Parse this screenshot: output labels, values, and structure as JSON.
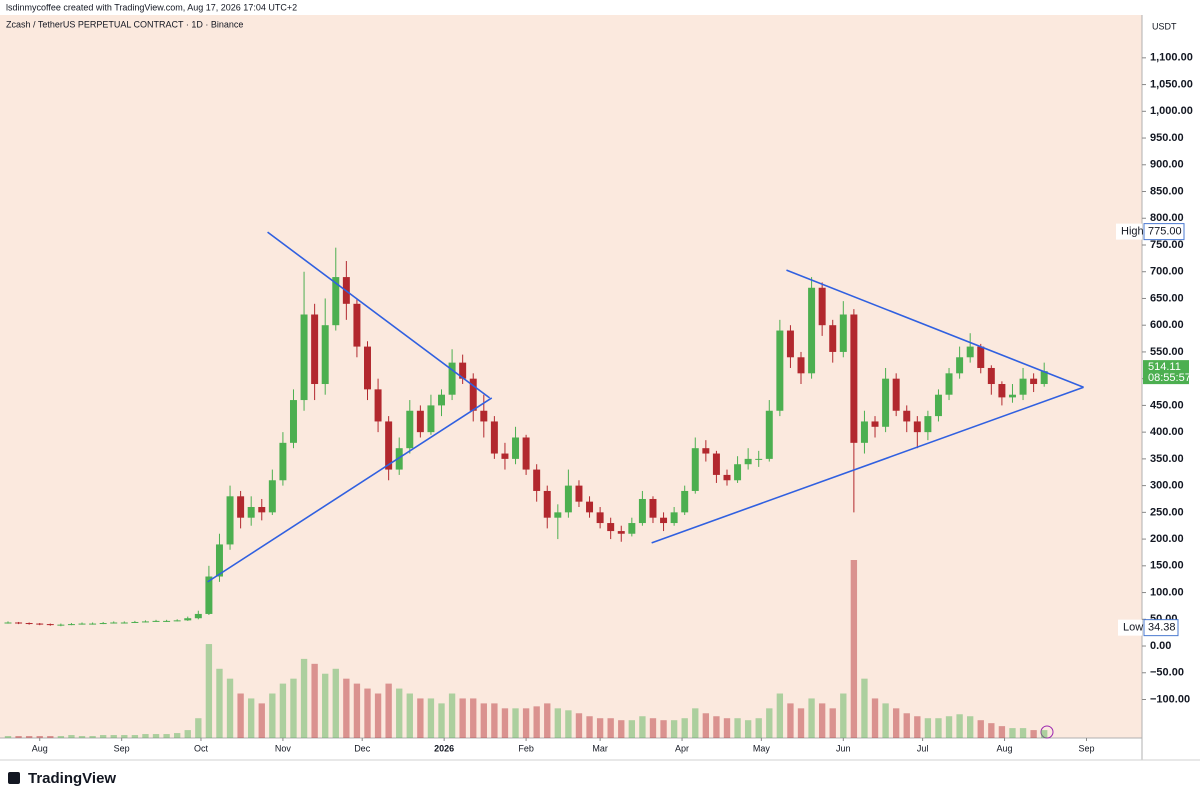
{
  "chart_data": {
    "type": "candlestick",
    "subtitle": "lsdinmycoffee created with TradingView.com, Aug 17, 2026 17:04 UTC+2",
    "title": "Zcash / TetherUS PERPETUAL CONTRACT · 1D · Binance",
    "currency": "USDT",
    "brand": "TradingView",
    "x": [
      -12,
      -8,
      -4,
      0,
      4,
      8,
      12,
      16,
      20,
      24,
      28,
      32,
      36,
      40,
      44,
      48,
      52,
      56,
      60,
      64,
      68,
      72,
      76,
      80,
      84,
      88,
      92,
      96,
      100,
      104,
      108,
      112,
      116,
      120,
      124,
      128,
      132,
      136,
      140,
      144,
      148,
      152,
      156,
      160,
      164,
      168,
      172,
      176,
      180,
      184,
      188,
      192,
      196,
      200,
      204,
      208,
      212,
      216,
      220,
      224,
      228,
      232,
      236,
      240,
      244,
      248,
      252,
      256,
      260,
      264,
      268,
      272,
      276,
      280,
      284,
      288,
      292,
      296,
      300,
      304,
      308,
      312,
      316,
      320,
      324,
      328,
      332,
      336,
      340,
      344,
      348,
      352,
      356,
      360,
      364,
      368,
      372,
      376,
      380
    ],
    "close": [
      44,
      43,
      42,
      41,
      40,
      40,
      41,
      42,
      42,
      43,
      44,
      44,
      45,
      46,
      47,
      47,
      48,
      52,
      60,
      130,
      190,
      280,
      240,
      260,
      250,
      310,
      380,
      460,
      620,
      490,
      600,
      690,
      640,
      560,
      480,
      420,
      330,
      370,
      440,
      400,
      450,
      470,
      530,
      500,
      440,
      420,
      360,
      350,
      390,
      330,
      290,
      240,
      250,
      300,
      270,
      250,
      230,
      215,
      210,
      230,
      275,
      240,
      230,
      250,
      290,
      370,
      360,
      320,
      310,
      340,
      350,
      350,
      440,
      590,
      540,
      510,
      670,
      600,
      550,
      620,
      380,
      420,
      410,
      500,
      440,
      420,
      400,
      430,
      470,
      510,
      540,
      560,
      520,
      490,
      465,
      470,
      500,
      490,
      514.11
    ],
    "high": [
      46,
      45,
      44,
      43,
      42,
      42,
      43,
      44,
      44,
      45,
      46,
      46,
      47,
      48,
      49,
      49,
      50,
      55,
      66,
      150,
      210,
      300,
      290,
      280,
      275,
      330,
      400,
      480,
      700,
      640,
      650,
      745,
      720,
      650,
      570,
      500,
      430,
      390,
      460,
      450,
      470,
      480,
      555,
      545,
      510,
      470,
      430,
      380,
      410,
      395,
      340,
      300,
      265,
      330,
      310,
      280,
      260,
      240,
      225,
      240,
      290,
      280,
      250,
      260,
      300,
      390,
      385,
      365,
      330,
      355,
      370,
      365,
      460,
      610,
      600,
      550,
      690,
      680,
      610,
      645,
      630,
      440,
      430,
      520,
      510,
      450,
      430,
      440,
      480,
      520,
      560,
      585,
      565,
      525,
      495,
      490,
      520,
      510,
      530
    ],
    "low": [
      42,
      41,
      40,
      39,
      38,
      37,
      39,
      40,
      40,
      41,
      42,
      42,
      43,
      44,
      45,
      45,
      46,
      47,
      50,
      58,
      120,
      180,
      220,
      225,
      235,
      245,
      300,
      370,
      440,
      460,
      470,
      590,
      610,
      540,
      460,
      400,
      310,
      320,
      360,
      390,
      395,
      430,
      460,
      490,
      420,
      390,
      350,
      330,
      340,
      320,
      270,
      220,
      200,
      240,
      260,
      240,
      220,
      200,
      195,
      205,
      225,
      230,
      215,
      225,
      245,
      285,
      345,
      305,
      300,
      305,
      330,
      335,
      345,
      430,
      520,
      490,
      500,
      580,
      530,
      540,
      250,
      360,
      390,
      400,
      430,
      400,
      370,
      385,
      420,
      460,
      500,
      530,
      510,
      470,
      450,
      455,
      460,
      475,
      485
    ],
    "volume": [
      2,
      2,
      2,
      2,
      2,
      2,
      3,
      2,
      2,
      3,
      3,
      3,
      3,
      4,
      4,
      4,
      5,
      8,
      20,
      95,
      70,
      60,
      45,
      40,
      35,
      45,
      55,
      60,
      80,
      75,
      65,
      70,
      60,
      55,
      50,
      45,
      55,
      50,
      45,
      40,
      40,
      35,
      45,
      40,
      40,
      35,
      35,
      30,
      30,
      30,
      32,
      35,
      30,
      28,
      25,
      22,
      20,
      20,
      18,
      18,
      22,
      20,
      18,
      18,
      20,
      30,
      25,
      22,
      20,
      20,
      18,
      20,
      30,
      45,
      35,
      30,
      40,
      35,
      30,
      45,
      180,
      60,
      40,
      35,
      30,
      25,
      22,
      20,
      20,
      22,
      24,
      22,
      18,
      15,
      12,
      10,
      10,
      8,
      8
    ],
    "up_color": "#4caf50",
    "down_color": "#b2282e",
    "trendline_color": "#3060e0",
    "xlim": [
      -12,
      417
    ],
    "xticks": [
      {
        "value": 0,
        "label": "Aug"
      },
      {
        "value": 31,
        "label": "Sep"
      },
      {
        "value": 61,
        "label": "Oct"
      },
      {
        "value": 92,
        "label": "Nov"
      },
      {
        "value": 122,
        "label": "Dec"
      },
      {
        "value": 153,
        "label": "2026"
      },
      {
        "value": 184,
        "label": "Feb"
      },
      {
        "value": 212,
        "label": "Mar"
      },
      {
        "value": 243,
        "label": "Apr"
      },
      {
        "value": 273,
        "label": "May"
      },
      {
        "value": 304,
        "label": "Jun"
      },
      {
        "value": 334,
        "label": "Jul"
      },
      {
        "value": 365,
        "label": "Aug"
      },
      {
        "value": 396,
        "label": "Sep"
      }
    ],
    "ylim": [
      -172,
      1174.5
    ],
    "yticks": [
      {
        "value": -100,
        "label": "−100.00"
      },
      {
        "value": -50,
        "label": "−50.00"
      },
      {
        "value": 0,
        "label": "0.00"
      },
      {
        "value": 50,
        "label": "50.00"
      },
      {
        "value": 100,
        "label": "100.00"
      },
      {
        "value": 150,
        "label": "150.00"
      },
      {
        "value": 200,
        "label": "200.00"
      },
      {
        "value": 250,
        "label": "250.00"
      },
      {
        "value": 300,
        "label": "300.00"
      },
      {
        "value": 350,
        "label": "350.00"
      },
      {
        "value": 400,
        "label": "400.00"
      },
      {
        "value": 450,
        "label": "450.00"
      },
      {
        "value": 500,
        "label": "500.00"
      },
      {
        "value": 550,
        "label": "550.00"
      },
      {
        "value": 600,
        "label": "600.00"
      },
      {
        "value": 650,
        "label": "650.00"
      },
      {
        "value": 700,
        "label": "700.00"
      },
      {
        "value": 750,
        "label": "750.00"
      },
      {
        "value": 800,
        "label": "800.00"
      },
      {
        "value": 850,
        "label": "850.00"
      },
      {
        "value": 900,
        "label": "900.00"
      },
      {
        "value": 950,
        "label": "950.00"
      },
      {
        "value": 1000,
        "label": "1,000.00"
      },
      {
        "value": 1050,
        "label": "1,050.00"
      },
      {
        "value": 1100,
        "label": "1,100.00"
      }
    ],
    "trendlines": [
      {
        "points": [
          [
            86.2,
            774
          ],
          [
            170.2,
            464
          ]
        ]
      },
      {
        "points": [
          [
            63.5,
            120
          ],
          [
            171,
            464
          ]
        ]
      },
      {
        "points": [
          [
            282.5,
            703
          ],
          [
            394.9,
            484
          ]
        ]
      },
      {
        "points": [
          [
            231.5,
            193
          ],
          [
            394.9,
            484
          ]
        ]
      }
    ],
    "last_price": 514.11,
    "countdown": "08:55:57",
    "high_marker": {
      "text": "High",
      "price": {
        "value": 775,
        "label": "775.00"
      }
    },
    "low_marker": {
      "text": "Low",
      "price": 34.38
    }
  }
}
